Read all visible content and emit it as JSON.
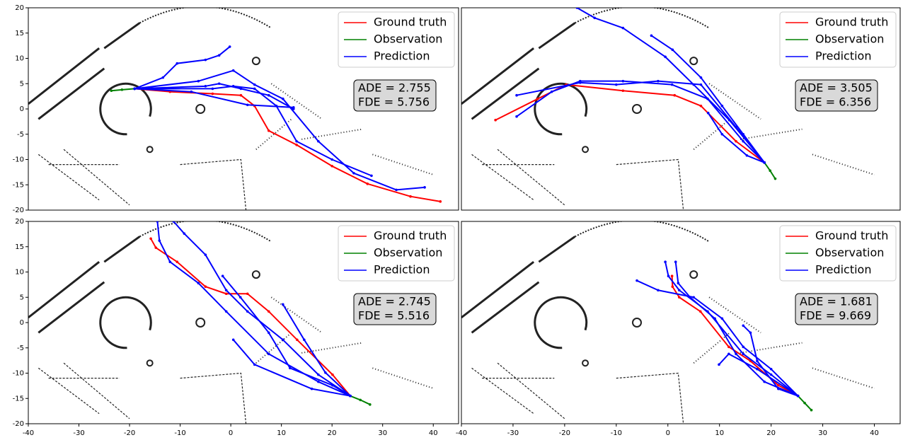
{
  "chart_data": [
    {
      "type": "line",
      "xlim": [
        -40,
        45
      ],
      "ylim": [
        -20,
        20
      ],
      "yticks": [
        -20,
        -15,
        -10,
        -5,
        0,
        5,
        10,
        15,
        20
      ],
      "annotation": [
        "ADE = 2.755",
        "FDE = 5.756"
      ],
      "series": [
        {
          "name": "Ground truth",
          "color": "#ff0000",
          "lines": [
            {
              "x": [
                -19,
                -12,
                -3.6,
                2,
                4.7,
                7.5,
                13,
                20,
                27,
                35.5,
                41.4
              ],
              "values": [
                4,
                3.4,
                3,
                2.7,
                0.6,
                -4.3,
                -7.1,
                -11.3,
                -14.8,
                -17.3,
                -18.3
              ]
            }
          ]
        },
        {
          "name": "Observation",
          "color": "#008000",
          "lines": [
            {
              "x": [
                -23.6,
                -21.5,
                -19
              ],
              "values": [
                3.6,
                3.8,
                4
              ]
            }
          ]
        },
        {
          "name": "Prediction",
          "color": "#0000ff",
          "lines": [
            {
              "x": [
                -19,
                -13.4,
                -10.6,
                -5,
                -2.3,
                -0.2
              ],
              "values": [
                4,
                6.2,
                9,
                9.7,
                10.6,
                12.3
              ]
            },
            {
              "x": [
                -19,
                -5,
                -2.3,
                2,
                7.5,
                12.4
              ],
              "values": [
                4,
                4.5,
                5,
                4,
                2.7,
                0
              ]
            },
            {
              "x": [
                -19,
                -3.6,
                0.5,
                4.7,
                9,
                13,
                20,
                27.8
              ],
              "values": [
                4,
                4,
                4.5,
                4,
                0.6,
                -6.4,
                -10,
                -13.2
              ]
            },
            {
              "x": [
                -19,
                -6.4,
                0.5,
                4.7,
                10.3,
                17.3,
                24.3,
                32.7,
                38.3
              ],
              "values": [
                4,
                5.5,
                7.6,
                4.8,
                2,
                -6.4,
                -12.7,
                -16,
                -15.5
              ]
            },
            {
              "x": [
                -19,
                -7.8,
                3.3,
                12.4
              ],
              "values": [
                4,
                3.4,
                0.8,
                0.3
              ]
            }
          ]
        }
      ]
    },
    {
      "type": "line",
      "xlim": [
        -40,
        45
      ],
      "ylim": [
        -20,
        20
      ],
      "annotation": [
        "ADE = 3.505",
        "FDE = 6.356"
      ],
      "series": [
        {
          "name": "Ground truth",
          "color": "#ff0000",
          "lines": [
            {
              "x": [
                18.7,
                13.2,
                6.4,
                1.3,
                -8.7,
                -19.7,
                -25.2,
                -33.4
              ],
              "values": [
                -10.6,
                -6.4,
                0.6,
                2.7,
                3.6,
                4.8,
                2,
                -2.2
              ]
            }
          ]
        },
        {
          "name": "Observation",
          "color": "#008000",
          "lines": [
            {
              "x": [
                18.7,
                19.8,
                20.8
              ],
              "values": [
                -10.6,
                -12.2,
                -13.8
              ]
            }
          ]
        },
        {
          "name": "Prediction",
          "color": "#0000ff",
          "lines": [
            {
              "x": [
                18.7,
                14.6,
                7.7,
                0.8,
                -8.7,
                -17,
                -22.5,
                -29.3
              ],
              "values": [
                -10.6,
                -6.4,
                2,
                4.8,
                5.5,
                5.5,
                3.4,
                -1.5
              ]
            },
            {
              "x": [
                18.7,
                13.2,
                6.4,
                -1.9,
                -10,
                -17,
                -29.3
              ],
              "values": [
                -10.6,
                -3.6,
                4.8,
                5.5,
                4.8,
                5.2,
                2.7
              ]
            },
            {
              "x": [
                18.7,
                11.9,
                5,
                -0.5,
                -8.7,
                -14.2,
                -17.6
              ],
              "values": [
                -10.6,
                -2.2,
                4.8,
                10.3,
                16,
                18,
                20
              ]
            },
            {
              "x": [
                18.7,
                14.6,
                10.5,
                6.4,
                0.9,
                -3.2
              ],
              "values": [
                -10.6,
                -5,
                0.6,
                6.2,
                11.7,
                14.5
              ]
            },
            {
              "x": [
                18.7,
                15.3,
                10.5,
                7.8
              ],
              "values": [
                -10.6,
                -9.2,
                -5,
                -0.8
              ]
            }
          ]
        }
      ]
    },
    {
      "type": "line",
      "xlim": [
        -40,
        45
      ],
      "ylim": [
        -20,
        20
      ],
      "xticks": [
        -40,
        -30,
        -20,
        -10,
        0,
        10,
        20,
        30,
        40
      ],
      "yticks": [
        -20,
        -15,
        -10,
        -5,
        0,
        5,
        10,
        15,
        20
      ],
      "annotation": [
        "ADE = 2.745",
        "FDE = 5.516"
      ],
      "series": [
        {
          "name": "Ground truth",
          "color": "#ff0000",
          "lines": [
            {
              "x": [
                23.6,
                20.1,
                13.1,
                7.5,
                3.3,
                -0.9,
                -5,
                -10.6,
                -14.8,
                -15.8
              ],
              "values": [
                -14.5,
                -10.3,
                -3.4,
                2.2,
                5.7,
                5.7,
                7.1,
                12,
                14.8,
                16.6
              ]
            }
          ]
        },
        {
          "name": "Observation",
          "color": "#008000",
          "lines": [
            {
              "x": [
                23.6,
                25.6,
                27.5
              ],
              "values": [
                -14.5,
                -15.3,
                -16.2
              ]
            }
          ]
        },
        {
          "name": "Prediction",
          "color": "#0000ff",
          "lines": [
            {
              "x": [
                23.6,
                17.3,
                10.3,
                3.3,
                -0.9,
                -5,
                -9.2,
                -11.3
              ],
              "values": [
                -14.5,
                -10.3,
                -3.4,
                2.2,
                6.4,
                13.4,
                17.6,
                20
              ]
            },
            {
              "x": [
                23.6,
                17.3,
                7.5,
                -0.9,
                -6.4,
                -12,
                -14.1,
                -14.5
              ],
              "values": [
                -14.5,
                -11.7,
                -6.2,
                2.2,
                7.8,
                12,
                16.2,
                20
              ]
            },
            {
              "x": [
                23.6,
                20.1,
                11.7,
                7.5,
                1.9,
                -1.6
              ],
              "values": [
                -14.5,
                -12.4,
                -9,
                -2,
                5,
                9.2
              ]
            },
            {
              "x": [
                23.6,
                16,
                4.7,
                0.5
              ],
              "values": [
                -14.5,
                -13.1,
                -8.3,
                -3.4
              ]
            },
            {
              "x": [
                23.6,
                18.7,
                14.5,
                10.3
              ],
              "values": [
                -14.5,
                -9.9,
                -3.4,
                3.6
              ]
            }
          ]
        }
      ]
    },
    {
      "type": "line",
      "xlim": [
        -40,
        45
      ],
      "ylim": [
        -20,
        20
      ],
      "xticks": [
        -40,
        -30,
        -20,
        -10,
        0,
        10,
        20,
        30,
        40
      ],
      "annotation": [
        "ADE = 1.681",
        "FDE = 9.669"
      ],
      "series": [
        {
          "name": "Ground truth",
          "color": "#ff0000",
          "lines": [
            {
              "x": [
                25.2,
                21.4,
                16,
                11.8,
                6.3,
                2.2,
                0.9,
                0.8
              ],
              "values": [
                -14.5,
                -12.4,
                -7.6,
                -4.8,
                2.2,
                5,
                7.1,
                9.2
              ]
            }
          ]
        },
        {
          "name": "Observation",
          "color": "#008000",
          "lines": [
            {
              "x": [
                25.2,
                26.5,
                27.8
              ],
              "values": [
                -14.5,
                -15.9,
                -17.3
              ]
            }
          ]
        },
        {
          "name": "Prediction",
          "color": "#0000ff",
          "lines": [
            {
              "x": [
                25.2,
                20,
                14.6,
                7.7,
                2.2,
                0.1,
                -0.5
              ],
              "values": [
                -14.5,
                -10.3,
                -6.2,
                2.2,
                6.4,
                9.2,
                12
              ]
            },
            {
              "x": [
                25.2,
                18.7,
                13.2,
                9.1,
                4.3,
                2,
                1.5
              ],
              "values": [
                -14.5,
                -11.7,
                -6.2,
                0.8,
                5,
                7.8,
                12
              ]
            },
            {
              "x": [
                25.2,
                20,
                14.6,
                10.5,
                5,
                -1.9,
                -6
              ],
              "values": [
                -14.5,
                -9.2,
                -4.8,
                0.8,
                5,
                6.4,
                8.3
              ]
            },
            {
              "x": [
                25.2,
                17.3,
                11.8,
                9.9
              ],
              "values": [
                -14.5,
                -9.2,
                -6.2,
                -8.3
              ]
            },
            {
              "x": [
                25.2,
                21.4,
                17.3,
                16,
                14.6
              ],
              "values": [
                -14.5,
                -13.1,
                -7.6,
                -2,
                -0.6
              ]
            }
          ]
        }
      ]
    }
  ]
}
